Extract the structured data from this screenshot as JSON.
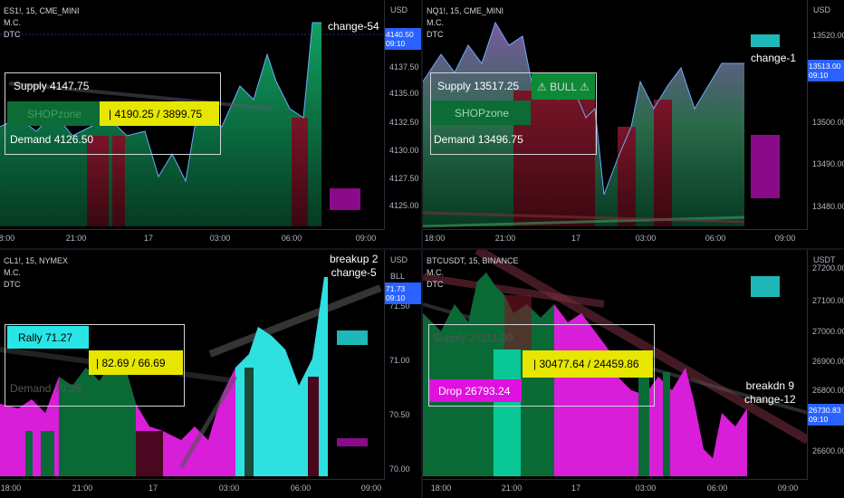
{
  "panels": [
    {
      "id": "es",
      "header": {
        "symbol": "ES1!, 15, CME_MINI",
        "line2": "M.C.",
        "line3": "DTC"
      },
      "axis": {
        "unit": "USD",
        "ticks": [
          "4140.50",
          "4137.50",
          "4135.00",
          "4132.50",
          "4130.00",
          "4127.50",
          "4125.00"
        ],
        "badge_price": "4140.50",
        "badge_time": "09:10"
      },
      "times": [
        "18:00",
        "21:00",
        "17",
        "03:00",
        "06:00",
        "09:00"
      ],
      "supply": "Supply  4147.75",
      "zone_label": "SHOPzone",
      "range": "|    4190.25 / 3899.75",
      "demand": "Demand  4126.50",
      "annotation": "change-54"
    },
    {
      "id": "nq",
      "header": {
        "symbol": "NQ1!, 15, CME_MINI",
        "line2": "M.C.",
        "line3": "DTC"
      },
      "axis": {
        "unit": "USD",
        "ticks": [
          "13520.00",
          "13510.00",
          "13500.00",
          "13490.00",
          "13480.00"
        ],
        "badge_price": "13513.00",
        "badge_time": "09:10"
      },
      "times": [
        "18:00",
        "21:00",
        "17",
        "03:00",
        "06:00",
        "09:00"
      ],
      "supply": "Supply  13517.25",
      "bull": "⚠ BULL ⚠",
      "zone_label": "SHOPzone",
      "demand": "Demand  13496.75",
      "annotation": "change-1"
    },
    {
      "id": "cl",
      "header": {
        "symbol": "CL1!, 15, NYMEX",
        "line2": "M.C.",
        "line3": "DTC"
      },
      "axis": {
        "unit": "USD",
        "unit2": "BLL",
        "ticks": [
          "71.50",
          "71.00",
          "70.50",
          "70.00"
        ],
        "badge_price": "71.73",
        "badge_time": "09:10"
      },
      "times": [
        "18:00",
        "21:00",
        "17",
        "03:00",
        "06:00",
        "09:00"
      ],
      "rally": "Rally  71.27",
      "range": "|    82.69 / 66.69",
      "demand": "Demand  70.38",
      "annotation": "breakup 2\nchange-5"
    },
    {
      "id": "btc",
      "header": {
        "symbol": "BTCUSDT, 15, BINANCE",
        "line2": "M.C.",
        "line3": "DTC"
      },
      "axis": {
        "unit": "USDT",
        "ticks": [
          "27200.00",
          "27100.00",
          "27000.00",
          "26900.00",
          "26800.00",
          "26700.00",
          "26600.00"
        ],
        "badge_price": "26730.83",
        "badge_time": "09:10"
      },
      "times": [
        "18:00",
        "21:00",
        "17",
        "03:00",
        "06:00",
        "09:00"
      ],
      "supply": "Supply  27111.00",
      "range": "|    30477.64 / 24459.86",
      "drop": "Drop  26793.24",
      "annotation": "breakdn 9\nchange-12"
    }
  ],
  "colors": {
    "background": "#000000",
    "green_area": "#0b6b3a",
    "red_area": "#5a0f1c",
    "cyan": "#29e5e5",
    "magenta": "#e011e0",
    "yellow": "#e6e600",
    "badge_blue": "#2962ff"
  }
}
